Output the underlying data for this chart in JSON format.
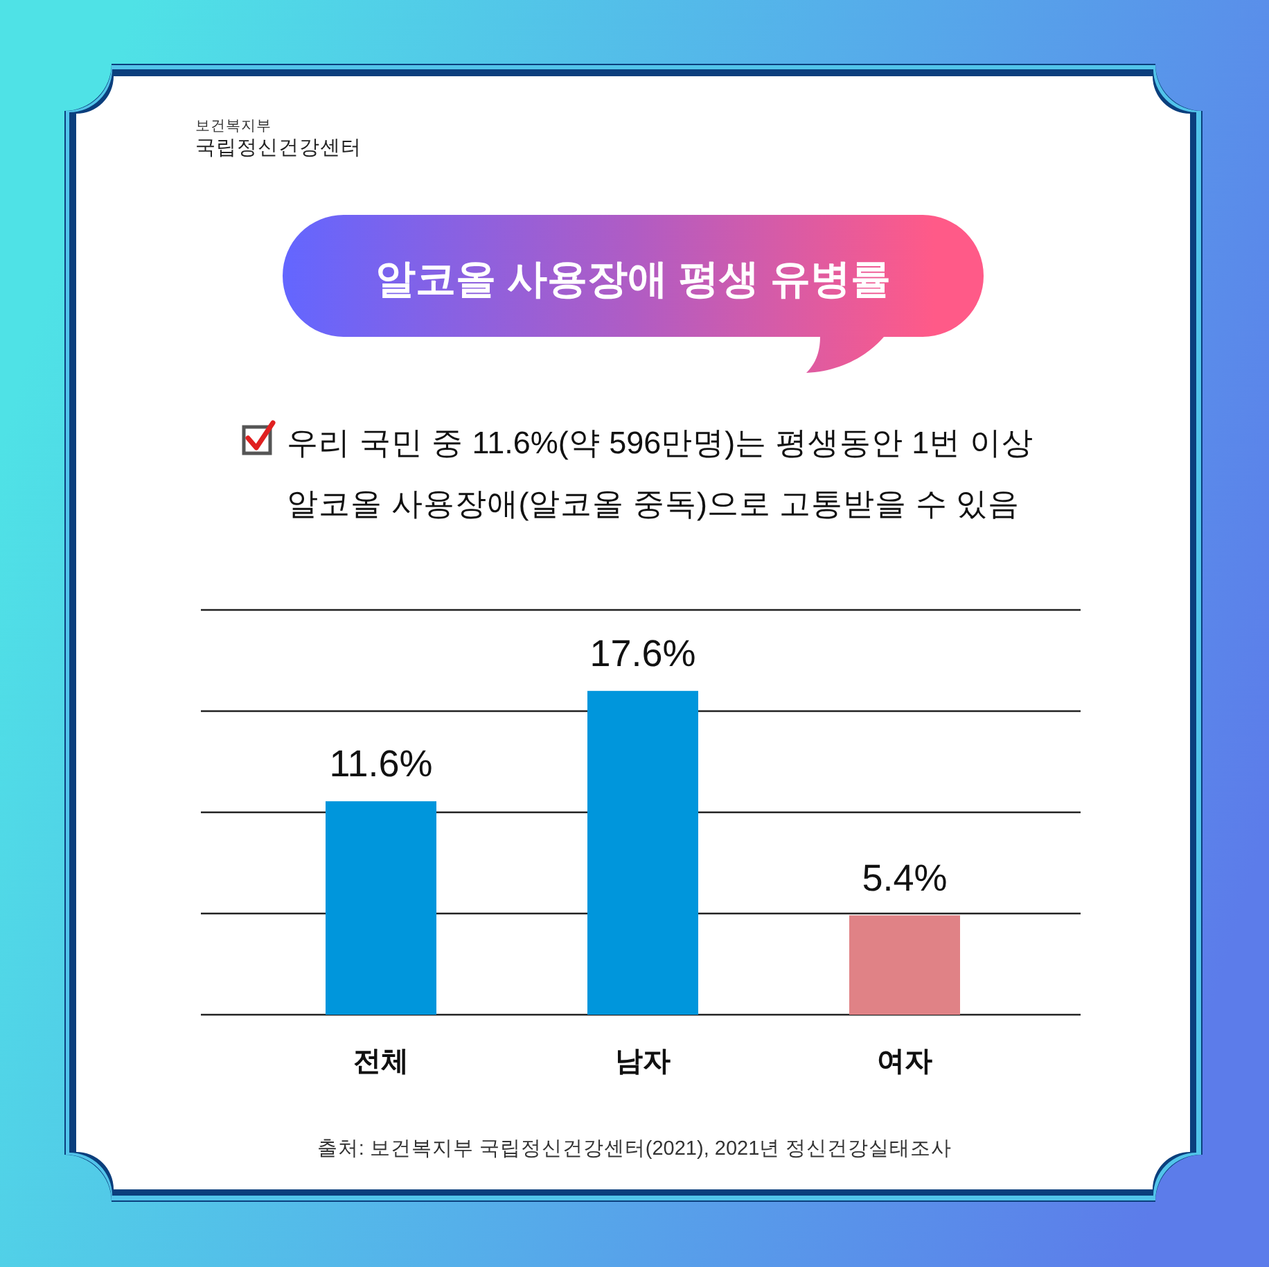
{
  "chart_data": {
    "type": "bar",
    "title": "알코올 사용장애 평생 유병률",
    "subtitle": "우리 국민 중 11.6%(약 596만명)는 평생동안 1번 이상\n알코올 사용장애(알코올 중독)으로 고통받을 수 있음",
    "categories": [
      "전체",
      "남자",
      "여자"
    ],
    "values": [
      11.6,
      17.6,
      5.4
    ],
    "colors": [
      "#0096dc",
      "#0096dc",
      "#e08286"
    ],
    "value_labels": [
      "11.6%",
      "17.6%",
      "5.4%"
    ],
    "ylim": [
      0,
      22
    ],
    "yticks": [
      {
        "value": 0,
        "label": null
      },
      {
        "value": 5.5,
        "label": null
      },
      {
        "value": 11,
        "label": null
      },
      {
        "value": 16.5,
        "label": null
      },
      {
        "value": 22,
        "label": null
      }
    ],
    "grid": "y",
    "tick_labels": "x",
    "annotations": [
      "보건복지부",
      "국립정신건강센터",
      "출처: 보건복지부 국립정신건강센터(2021), 2021년 정신건강실태조사"
    ]
  }
}
